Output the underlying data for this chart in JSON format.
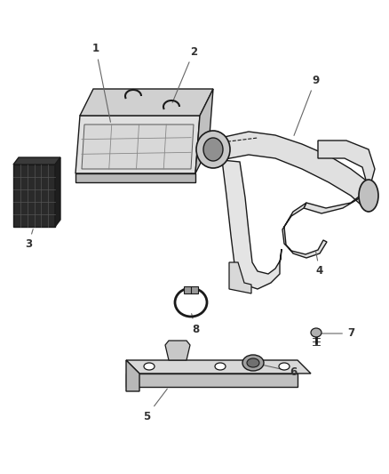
{
  "bg_color": "#ffffff",
  "line_color": "#1a1a1a",
  "gray_fill": "#e8e8e8",
  "mid_gray": "#c8c8c8",
  "dark_fill": "#3a3a3a",
  "fig_width": 4.38,
  "fig_height": 5.33,
  "label_fontsize": 8.5,
  "label_color": "#333333"
}
